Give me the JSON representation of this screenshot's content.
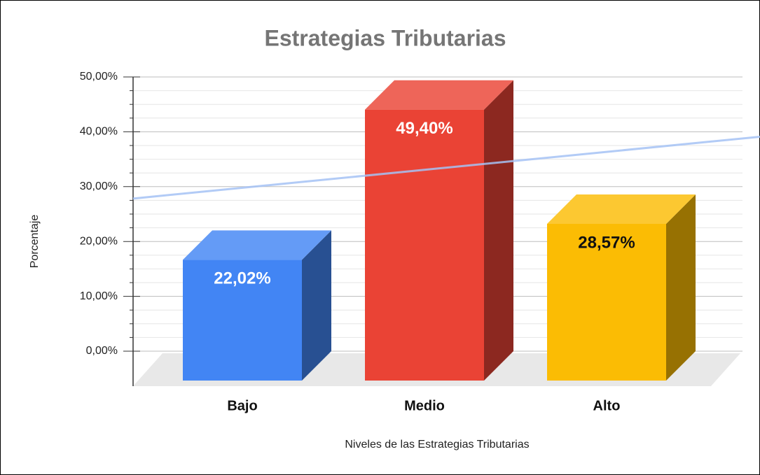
{
  "chart_data": {
    "type": "bar",
    "title": "Estrategias Tributarias",
    "x_label": "Niveles de las Estrategias Tributarias",
    "y_label": "Porcentaje",
    "categories": [
      "Bajo",
      "Medio",
      "Alto"
    ],
    "values": [
      22.02,
      49.4,
      28.57
    ],
    "value_labels": [
      "22,02%",
      "49,40%",
      "28,57%"
    ],
    "colors": [
      "#4285f4",
      "#ea4335",
      "#fbbc04"
    ],
    "ylim": [
      0,
      50
    ],
    "yticks": [
      {
        "value": 0,
        "label": "0,00%"
      },
      {
        "value": 10,
        "label": "10,00%"
      },
      {
        "value": 20,
        "label": "20,00%"
      },
      {
        "value": 30,
        "label": "30,00%"
      },
      {
        "value": 40,
        "label": "40,00%"
      },
      {
        "value": 50,
        "label": "50,00%"
      }
    ],
    "minor_yticks": [
      2.5,
      5,
      7.5,
      12.5,
      15,
      17.5,
      22.5,
      25,
      27.5,
      32.5,
      35,
      37.5,
      42.5,
      45,
      47.5
    ],
    "grid": true,
    "trendline": true,
    "trendline_color": "#a4c2f4"
  }
}
